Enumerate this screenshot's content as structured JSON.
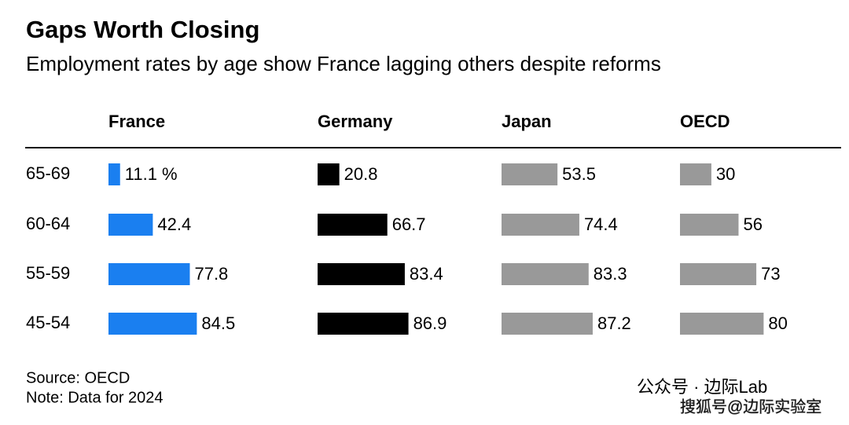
{
  "chart_data": {
    "type": "bar",
    "title": "Gaps Worth Closing",
    "subtitle": "Employment rates by age show France lagging others despite reforms",
    "categories": [
      "65-69",
      "60-64",
      "55-59",
      "45-54"
    ],
    "series": [
      {
        "name": "France",
        "color": "#1a7ff0",
        "values": [
          11.1,
          42.4,
          77.8,
          84.5
        ],
        "value_labels": [
          "11.1 %",
          "42.4",
          "77.8",
          "84.5"
        ]
      },
      {
        "name": "Germany",
        "color": "#000000",
        "values": [
          20.8,
          66.7,
          83.4,
          86.9
        ]
      },
      {
        "name": "Japan",
        "color": "#999999",
        "values": [
          53.5,
          74.4,
          83.3,
          87.2
        ]
      },
      {
        "name": "OECD",
        "color": "#999999",
        "values": [
          30,
          56,
          73,
          80
        ]
      }
    ],
    "source": "Source: OECD",
    "note": "Note: Data for 2024"
  },
  "watermark": {
    "line1": "公众号 · 边际Lab",
    "line2": "搜狐号@边际实验室"
  }
}
